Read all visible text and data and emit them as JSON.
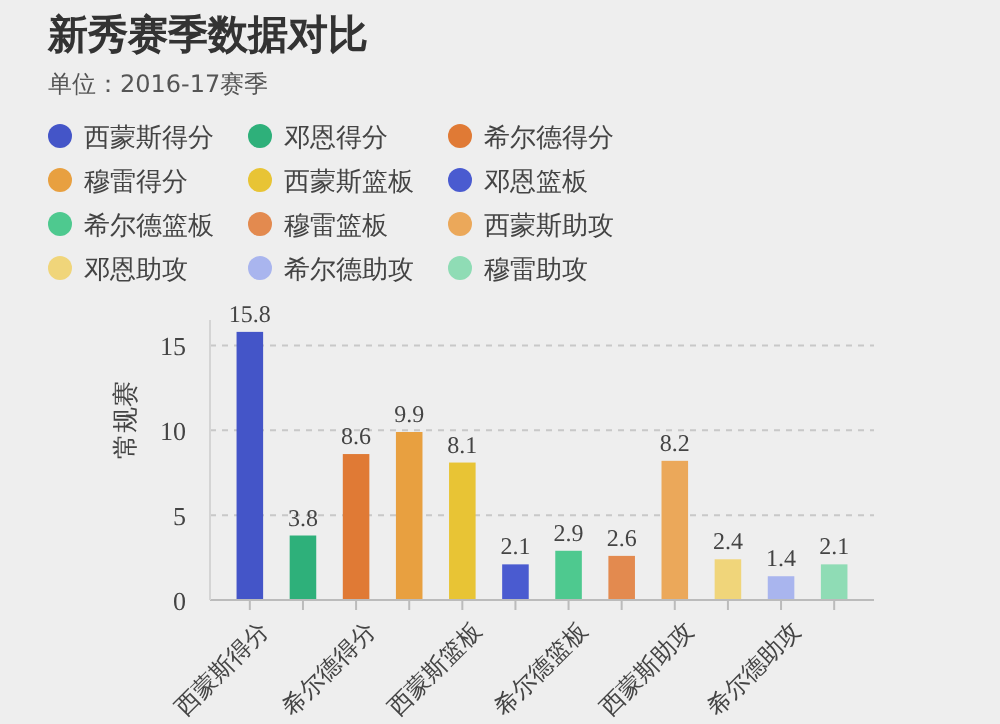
{
  "chart_data": {
    "type": "bar",
    "title": "新秀赛季数据对比",
    "subtitle": "单位：2016-17赛季",
    "ylabel": "常规赛",
    "categories": [
      "西蒙斯得分",
      null,
      "希尔德得分",
      null,
      "西蒙斯篮板",
      null,
      "希尔德篮板",
      null,
      "西蒙斯助攻",
      null,
      "希尔德助攻",
      null
    ],
    "series": [
      {
        "name": "西蒙斯得分",
        "color": "#4455c8",
        "values": [
          15.8,
          null,
          null,
          null,
          null,
          null,
          null,
          null,
          null,
          null,
          null,
          null
        ]
      },
      {
        "name": "邓恩得分",
        "color": "#2eb07a",
        "values": [
          null,
          3.8,
          null,
          null,
          null,
          null,
          null,
          null,
          null,
          null,
          null,
          null
        ]
      },
      {
        "name": "希尔德得分",
        "color": "#e07a35",
        "values": [
          null,
          null,
          8.6,
          null,
          null,
          null,
          null,
          null,
          null,
          null,
          null,
          null
        ]
      },
      {
        "name": "穆雷得分",
        "color": "#e8a040",
        "values": [
          null,
          null,
          null,
          9.9,
          null,
          null,
          null,
          null,
          null,
          null,
          null,
          null
        ]
      },
      {
        "name": "西蒙斯篮板",
        "color": "#e8c435",
        "values": [
          null,
          null,
          null,
          null,
          8.1,
          null,
          null,
          null,
          null,
          null,
          null,
          null
        ]
      },
      {
        "name": "邓恩篮板",
        "color": "#4a5bd0",
        "values": [
          null,
          null,
          null,
          null,
          null,
          2.1,
          null,
          null,
          null,
          null,
          null,
          null
        ]
      },
      {
        "name": "希尔德篮板",
        "color": "#4ec98f",
        "values": [
          null,
          null,
          null,
          null,
          null,
          null,
          2.9,
          null,
          null,
          null,
          null,
          null
        ]
      },
      {
        "name": "穆雷篮板",
        "color": "#e38a4f",
        "values": [
          null,
          null,
          null,
          null,
          null,
          null,
          null,
          2.6,
          null,
          null,
          null,
          null
        ]
      },
      {
        "name": "西蒙斯助攻",
        "color": "#eba85a",
        "values": [
          null,
          null,
          null,
          null,
          null,
          null,
          null,
          null,
          8.2,
          null,
          null,
          null
        ]
      },
      {
        "name": "邓恩助攻",
        "color": "#f0d57a",
        "values": [
          null,
          null,
          null,
          null,
          null,
          null,
          null,
          null,
          null,
          2.4,
          null,
          null
        ]
      },
      {
        "name": "希尔德助攻",
        "color": "#a9b5ee",
        "values": [
          null,
          null,
          null,
          null,
          null,
          null,
          null,
          null,
          null,
          null,
          1.4,
          null
        ]
      },
      {
        "name": "穆雷助攻",
        "color": "#8fdcb5",
        "values": [
          null,
          null,
          null,
          null,
          null,
          null,
          null,
          null,
          null,
          null,
          null,
          2.1
        ]
      }
    ],
    "ylim": [
      0,
      16.5
    ],
    "yticks": [
      0,
      5,
      10,
      15
    ],
    "grid": "y",
    "data_labels": true,
    "legend": "top left"
  }
}
